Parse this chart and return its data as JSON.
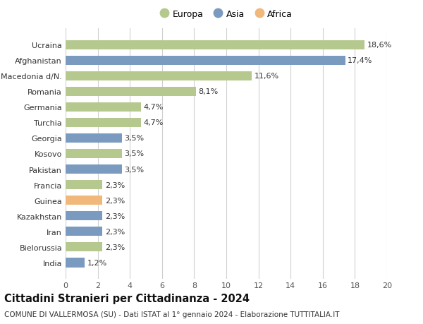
{
  "countries": [
    "India",
    "Bielorussia",
    "Iran",
    "Kazakhstan",
    "Guinea",
    "Francia",
    "Pakistan",
    "Kosovo",
    "Georgia",
    "Turchia",
    "Germania",
    "Romania",
    "Macedonia d/N.",
    "Afghanistan",
    "Ucraina"
  ],
  "values": [
    1.2,
    2.3,
    2.3,
    2.3,
    2.3,
    2.3,
    3.5,
    3.5,
    3.5,
    4.7,
    4.7,
    8.1,
    11.6,
    17.4,
    18.6
  ],
  "continents": [
    "Asia",
    "Europa",
    "Asia",
    "Asia",
    "Africa",
    "Europa",
    "Asia",
    "Europa",
    "Asia",
    "Europa",
    "Europa",
    "Europa",
    "Europa",
    "Asia",
    "Europa"
  ],
  "labels": [
    "1,2%",
    "2,3%",
    "2,3%",
    "2,3%",
    "2,3%",
    "2,3%",
    "3,5%",
    "3,5%",
    "3,5%",
    "4,7%",
    "4,7%",
    "8,1%",
    "11,6%",
    "17,4%",
    "18,6%"
  ],
  "colors": {
    "Europa": "#b5c98e",
    "Asia": "#7a9bbf",
    "Africa": "#f0b87a"
  },
  "legend_order": [
    "Europa",
    "Asia",
    "Africa"
  ],
  "title": "Cittadini Stranieri per Cittadinanza - 2024",
  "subtitle": "COMUNE DI VALLERMOSA (SU) - Dati ISTAT al 1° gennaio 2024 - Elaborazione TUTTITALIA.IT",
  "xlim": [
    0,
    20
  ],
  "xticks": [
    0,
    2,
    4,
    6,
    8,
    10,
    12,
    14,
    16,
    18,
    20
  ],
  "background_color": "#ffffff",
  "grid_color": "#d0d0d0",
  "bar_height": 0.62,
  "label_fontsize": 8,
  "title_fontsize": 10.5,
  "subtitle_fontsize": 7.5,
  "ytick_fontsize": 8,
  "xtick_fontsize": 8
}
